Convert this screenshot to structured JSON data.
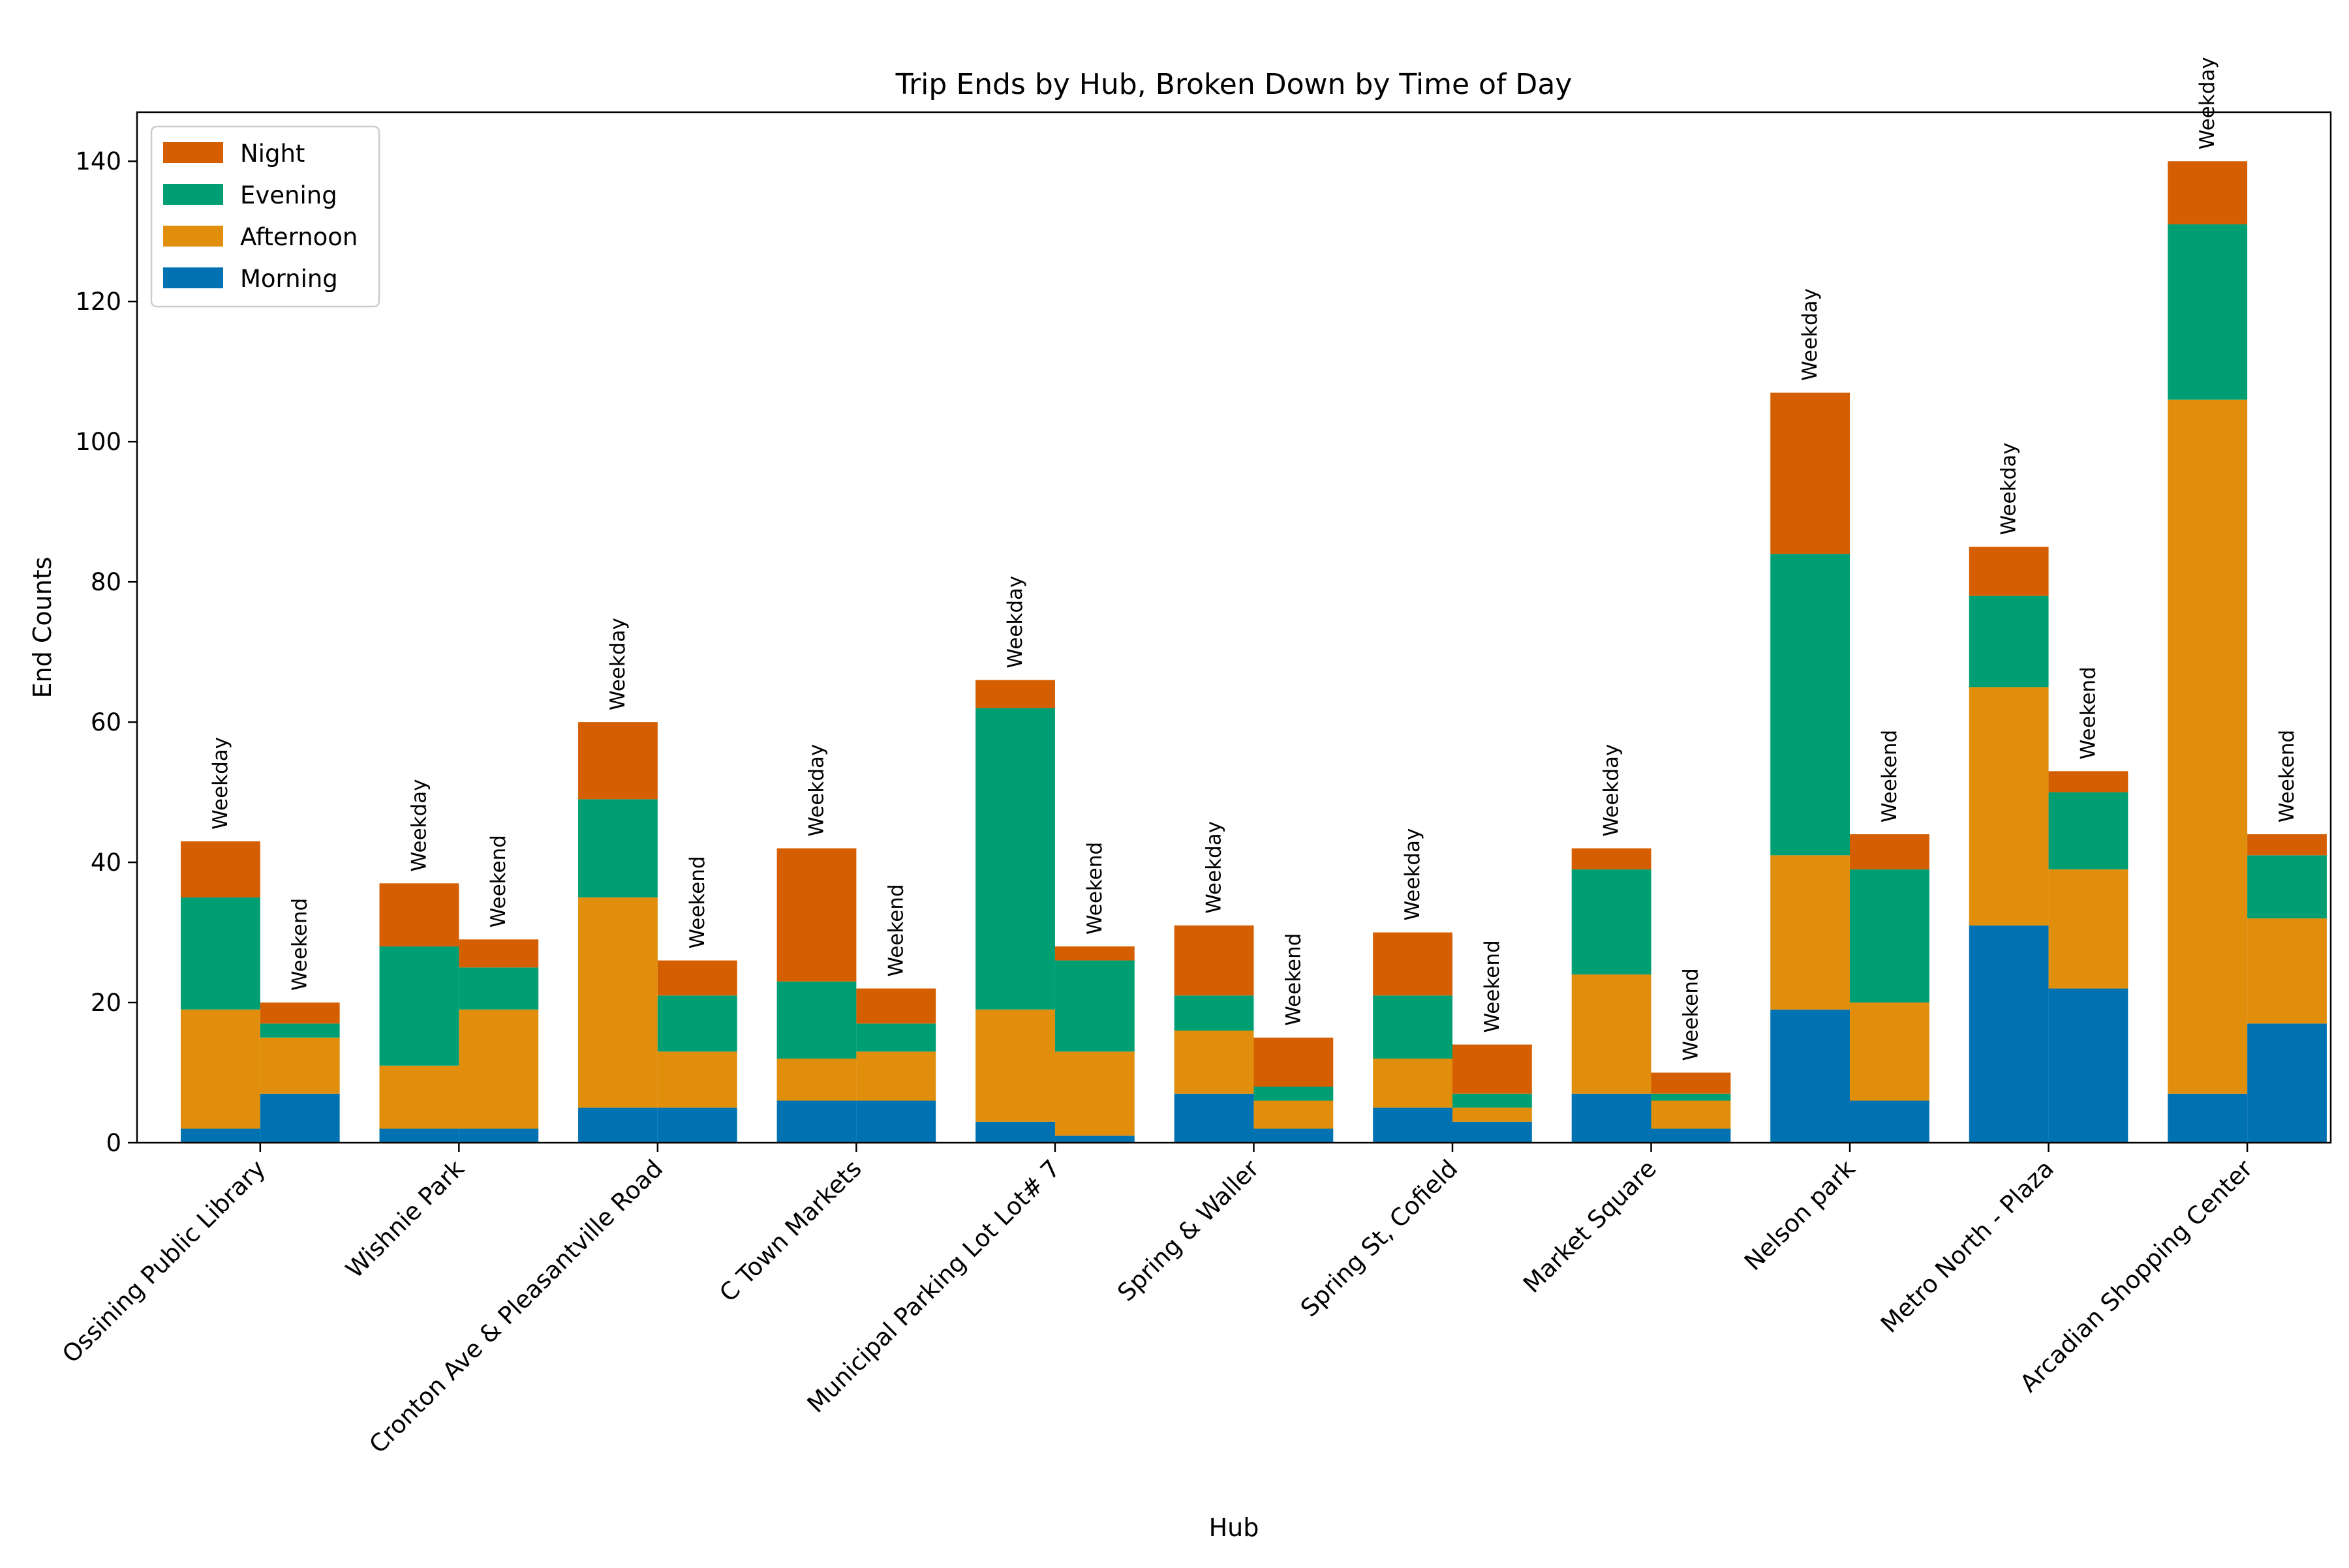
{
  "chart_data": {
    "type": "bar",
    "stacked": true,
    "title": "Trip Ends by Hub, Broken Down by Time of Day",
    "xlabel": "Hub",
    "ylabel": "End Counts",
    "ylim": [
      0,
      147
    ],
    "yticks": [
      0,
      20,
      40,
      60,
      80,
      100,
      120,
      140
    ],
    "grid": false,
    "legend_position": "top-left",
    "categories": [
      "Ossining Public Library",
      "Wishnie Park",
      "Cronton Ave & Pleasantville Road",
      "C Town Markets",
      "Municipal Parking Lot Lot# 7",
      "Spring & Waller",
      "Spring St, Cofield",
      "Market Square",
      "Nelson park",
      "Metro North - Plaza",
      "Arcadian Shopping Center"
    ],
    "groups": [
      "Weekday",
      "Weekend"
    ],
    "series": [
      {
        "name": "Morning",
        "color": "#0072b2",
        "weekday": [
          2,
          2,
          5,
          6,
          3,
          7,
          5,
          7,
          19,
          31,
          7
        ],
        "weekend": [
          7,
          2,
          5,
          6,
          1,
          2,
          3,
          2,
          6,
          22,
          17
        ]
      },
      {
        "name": "Afternoon",
        "color": "#e08e0b",
        "weekday": [
          17,
          9,
          30,
          6,
          16,
          9,
          7,
          17,
          22,
          34,
          99
        ],
        "weekend": [
          8,
          17,
          8,
          7,
          12,
          4,
          2,
          4,
          14,
          17,
          15
        ]
      },
      {
        "name": "Evening",
        "color": "#009e73",
        "weekday": [
          16,
          17,
          14,
          11,
          43,
          5,
          9,
          15,
          43,
          13,
          25
        ],
        "weekend": [
          2,
          6,
          8,
          4,
          13,
          2,
          2,
          1,
          19,
          11,
          9
        ]
      },
      {
        "name": "Night",
        "color": "#d55e00",
        "weekday": [
          8,
          9,
          11,
          19,
          4,
          10,
          9,
          3,
          23,
          7,
          9
        ],
        "weekend": [
          3,
          4,
          5,
          5,
          2,
          7,
          7,
          3,
          5,
          3,
          3
        ]
      }
    ],
    "legend_order": [
      "Night",
      "Evening",
      "Afternoon",
      "Morning"
    ]
  }
}
